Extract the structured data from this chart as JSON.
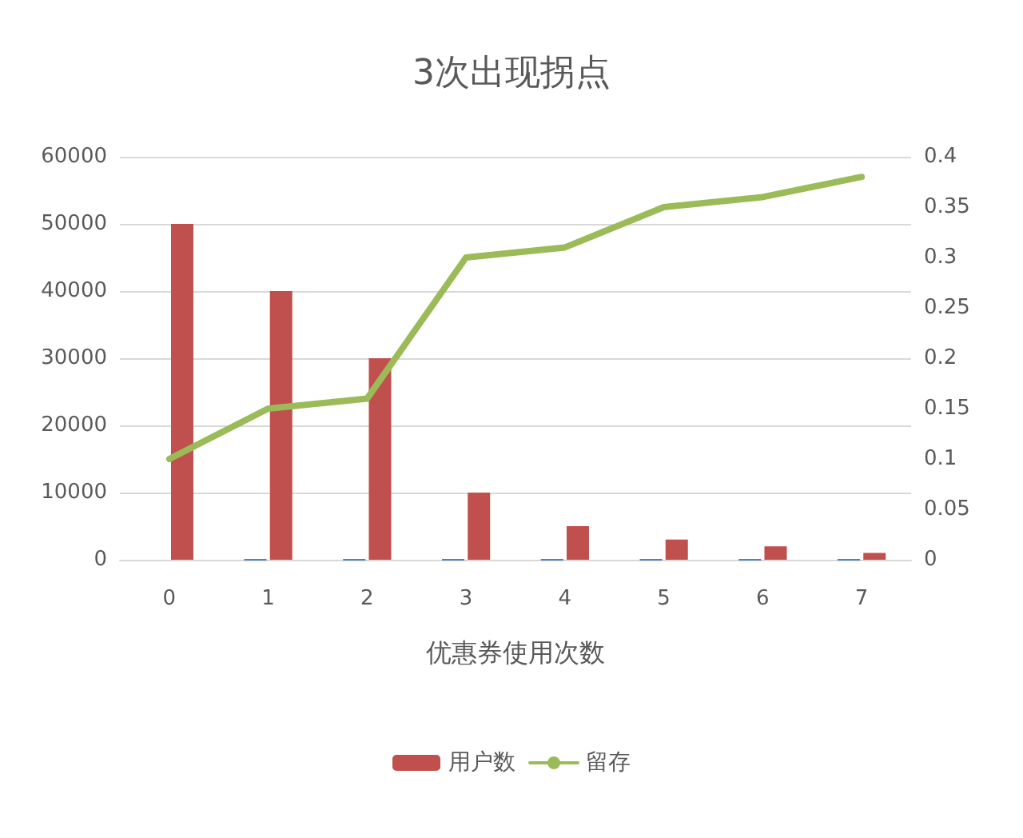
{
  "chart_data": {
    "type": "bar",
    "title": "3次出现拐点",
    "xlabel": "优惠券使用次数",
    "categories": [
      "0",
      "1",
      "2",
      "3",
      "4",
      "5",
      "6",
      "7"
    ],
    "series": [
      {
        "color": "#4f81bd",
        "values": [
          0,
          1,
          2,
          3,
          4,
          5,
          6,
          7
        ]
      },
      {
        "name": "用户数",
        "color": "#c0504d",
        "values": [
          50000,
          40000,
          30000,
          10000,
          5000,
          3000,
          2000,
          1000
        ]
      },
      {
        "name": "留存",
        "type": "line",
        "axis": "y2",
        "color": "#9bbb59",
        "values": [
          0.1,
          0.15,
          0.16,
          0.3,
          0.31,
          0.35,
          0.36,
          0.38
        ]
      }
    ],
    "ylim": [
      0,
      60000
    ],
    "yticks": [
      0,
      10000,
      20000,
      30000,
      40000,
      50000,
      60000
    ],
    "y2lim": [
      0,
      0.4
    ],
    "y2ticks": [
      0,
      0.05,
      0.1,
      0.15,
      0.2,
      0.25,
      0.3,
      0.35,
      0.4
    ],
    "grid": "y",
    "legend": "bottom",
    "marker": "none",
    "line_style": "solid"
  }
}
